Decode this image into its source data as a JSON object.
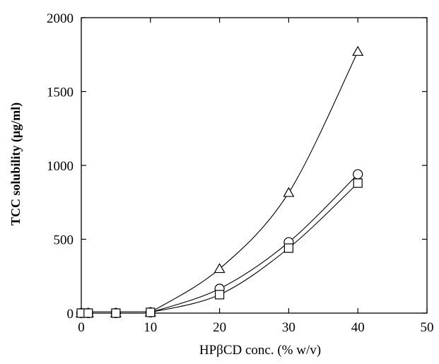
{
  "chart_data": {
    "type": "scatter",
    "xlabel": "HPβCD conc. (% w/v)",
    "ylabel": "TCC solubility (μg/ml)",
    "xlim": [
      0,
      50
    ],
    "ylim": [
      0,
      2000
    ],
    "xticks": [
      0,
      10,
      20,
      30,
      40,
      50
    ],
    "yticks": [
      0,
      500,
      1000,
      1500,
      2000
    ],
    "grid": false,
    "legend": "none",
    "series": [
      {
        "marker": "triangle",
        "x": [
          0,
          1,
          5,
          10,
          20,
          30,
          40
        ],
        "y": [
          0,
          0,
          0,
          5,
          300,
          815,
          1770
        ]
      },
      {
        "marker": "circle",
        "x": [
          0,
          1,
          5,
          10,
          20,
          30,
          40
        ],
        "y": [
          0,
          0,
          0,
          5,
          165,
          480,
          940
        ]
      },
      {
        "marker": "square",
        "x": [
          0,
          1,
          5,
          10,
          20,
          30,
          40
        ],
        "y": [
          0,
          0,
          0,
          5,
          125,
          440,
          880
        ]
      }
    ]
  }
}
